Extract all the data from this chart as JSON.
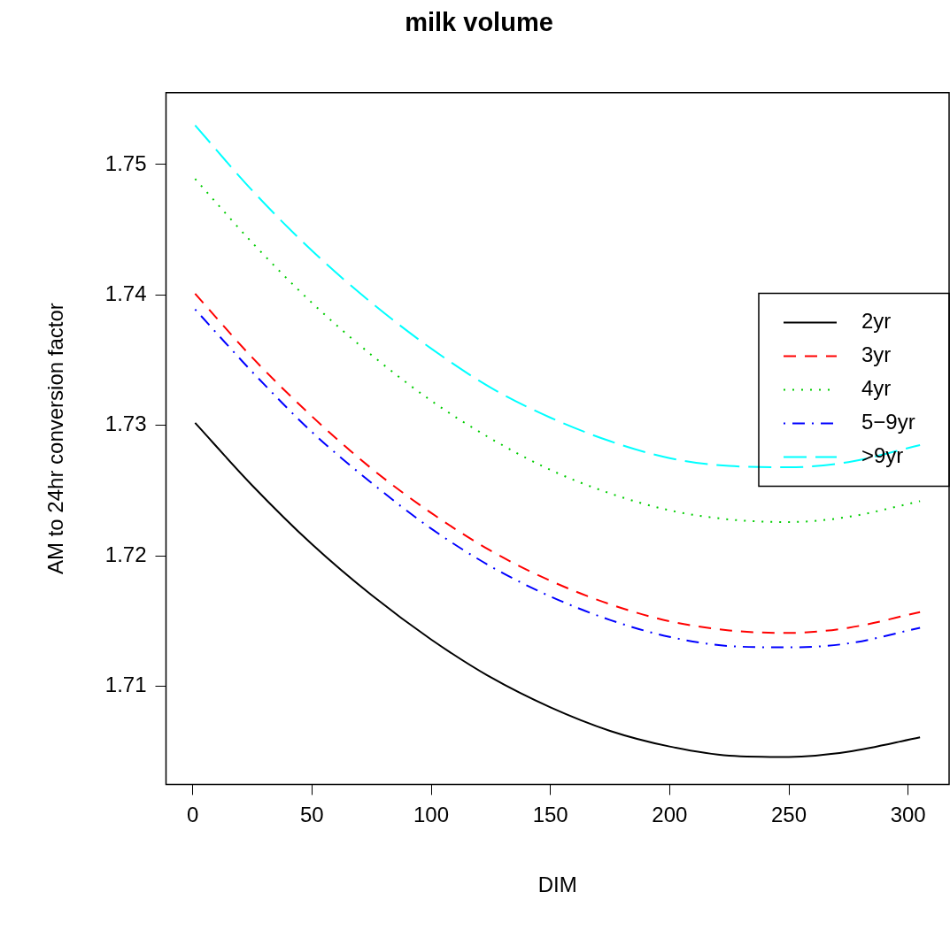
{
  "chart_data": {
    "type": "line",
    "title": "milk volume",
    "xlabel": "DIM",
    "ylabel": "AM to 24hr conversion factor",
    "x": [
      1,
      25,
      50,
      75,
      100,
      125,
      150,
      175,
      200,
      225,
      250,
      275,
      305
    ],
    "series": [
      {
        "name": "2yr",
        "color": "#000000",
        "line_style": "solid",
        "values": [
          1.7302,
          1.7254,
          1.7209,
          1.717,
          1.7136,
          1.7107,
          1.7084,
          1.7066,
          1.7054,
          1.7047,
          1.7046,
          1.705,
          1.7061
        ]
      },
      {
        "name": "3yr",
        "color": "#ff0000",
        "line_style": "dashed",
        "values": [
          1.7401,
          1.7352,
          1.7307,
          1.7267,
          1.7233,
          1.7204,
          1.7181,
          1.7163,
          1.715,
          1.7143,
          1.7141,
          1.7145,
          1.7157
        ]
      },
      {
        "name": "4yr",
        "color": "#00cd00",
        "line_style": "dotted",
        "values": [
          1.7489,
          1.744,
          1.7394,
          1.7354,
          1.7319,
          1.729,
          1.7266,
          1.7248,
          1.7235,
          1.7228,
          1.7226,
          1.723,
          1.7242
        ]
      },
      {
        "name": "5−9yr",
        "color": "#0000ff",
        "line_style": "dashdot",
        "values": [
          1.7389,
          1.7341,
          1.7295,
          1.7256,
          1.7221,
          1.7192,
          1.7169,
          1.7151,
          1.7138,
          1.7131,
          1.713,
          1.7133,
          1.7145
        ]
      },
      {
        "name": ">9yr",
        "color": "#00ffff",
        "line_style": "longdash",
        "values": [
          1.753,
          1.748,
          1.7434,
          1.7394,
          1.7359,
          1.7329,
          1.7306,
          1.7288,
          1.7275,
          1.7269,
          1.7268,
          1.7272,
          1.7285
        ]
      }
    ],
    "xlim": [
      -11.2,
      317.2
    ],
    "ylim": [
      1.7025,
      1.7555
    ],
    "xticks": [
      0,
      50,
      100,
      150,
      200,
      250,
      300
    ],
    "yticks": [
      1.71,
      1.72,
      1.73,
      1.74,
      1.75
    ],
    "grid": false,
    "legend": "right",
    "marker": "none"
  }
}
